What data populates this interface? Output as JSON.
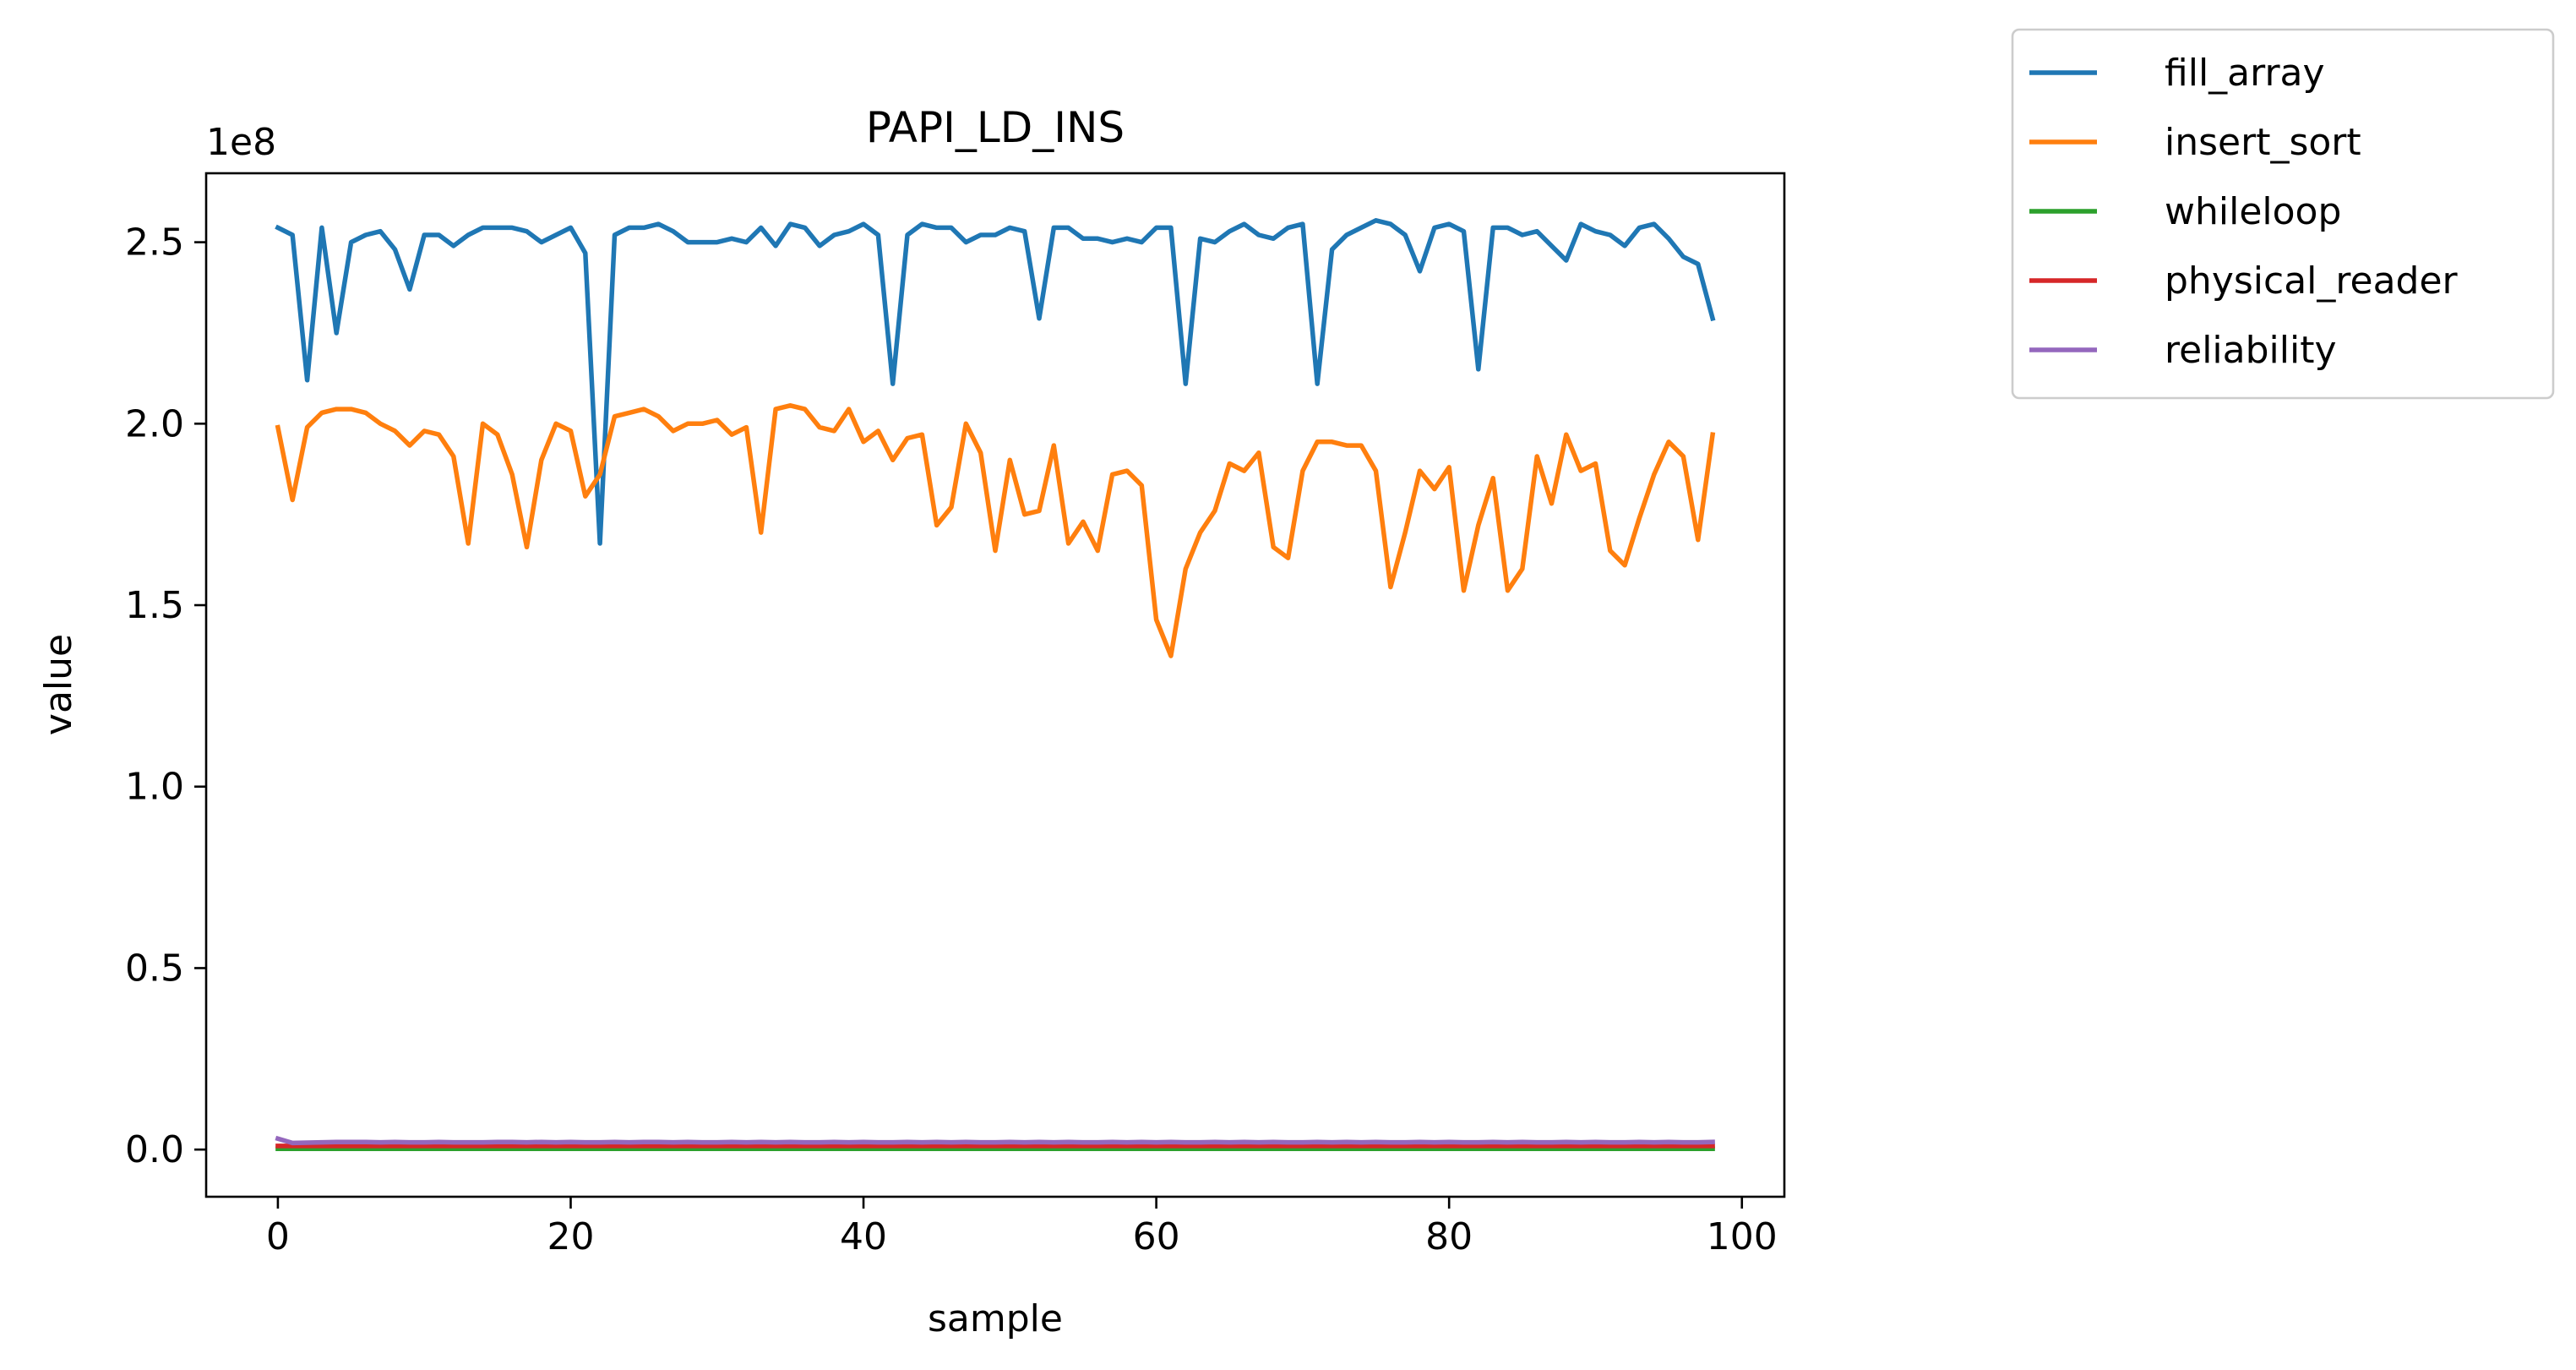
{
  "chart_data": {
    "type": "line",
    "title": "PAPI_LD_INS",
    "xlabel": "sample",
    "ylabel": "value",
    "y_multiplier_label": "1e8",
    "xlim": [
      -4.9,
      102.9
    ],
    "ylim": [
      -0.13,
      2.69
    ],
    "x_ticks": [
      0,
      20,
      40,
      60,
      80,
      100
    ],
    "x_tick_labels": [
      "0",
      "20",
      "40",
      "60",
      "80",
      "100"
    ],
    "y_ticks": [
      0.0,
      0.5,
      1.0,
      1.5,
      2.0,
      2.5
    ],
    "y_tick_labels": [
      "0.0",
      "0.5",
      "1.0",
      "1.5",
      "2.0",
      "2.5"
    ],
    "grid": false,
    "legend_position": "outside-top-right",
    "series": [
      {
        "name": "fill_array",
        "color": "#1f77b4",
        "values": [
          2.54,
          2.52,
          2.12,
          2.54,
          2.25,
          2.5,
          2.52,
          2.53,
          2.48,
          2.37,
          2.52,
          2.52,
          2.49,
          2.52,
          2.54,
          2.54,
          2.54,
          2.53,
          2.5,
          2.52,
          2.54,
          2.47,
          1.67,
          2.52,
          2.54,
          2.54,
          2.55,
          2.53,
          2.5,
          2.5,
          2.5,
          2.51,
          2.5,
          2.54,
          2.49,
          2.55,
          2.54,
          2.49,
          2.52,
          2.53,
          2.55,
          2.52,
          2.11,
          2.52,
          2.55,
          2.54,
          2.54,
          2.5,
          2.52,
          2.52,
          2.54,
          2.53,
          2.29,
          2.54,
          2.54,
          2.51,
          2.51,
          2.5,
          2.51,
          2.5,
          2.54,
          2.54,
          2.11,
          2.51,
          2.5,
          2.53,
          2.55,
          2.52,
          2.51,
          2.54,
          2.55,
          2.11,
          2.48,
          2.52,
          2.54,
          2.56,
          2.55,
          2.52,
          2.42,
          2.54,
          2.55,
          2.53,
          2.15,
          2.54,
          2.54,
          2.52,
          2.53,
          2.49,
          2.45,
          2.55,
          2.53,
          2.52,
          2.49,
          2.54,
          2.55,
          2.51,
          2.46,
          2.44,
          2.29
        ]
      },
      {
        "name": "insert_sort",
        "color": "#ff7f0e",
        "values": [
          1.99,
          1.79,
          1.99,
          2.03,
          2.04,
          2.04,
          2.03,
          2.0,
          1.98,
          1.94,
          1.98,
          1.97,
          1.91,
          1.67,
          2.0,
          1.97,
          1.86,
          1.66,
          1.9,
          2.0,
          1.98,
          1.8,
          1.86,
          2.02,
          2.03,
          2.04,
          2.02,
          1.98,
          2.0,
          2.0,
          2.01,
          1.97,
          1.99,
          1.7,
          2.04,
          2.05,
          2.04,
          1.99,
          1.98,
          2.04,
          1.95,
          1.98,
          1.9,
          1.96,
          1.97,
          1.72,
          1.77,
          2.0,
          1.92,
          1.65,
          1.9,
          1.75,
          1.76,
          1.94,
          1.67,
          1.73,
          1.65,
          1.86,
          1.87,
          1.83,
          1.46,
          1.36,
          1.6,
          1.7,
          1.76,
          1.89,
          1.87,
          1.92,
          1.66,
          1.63,
          1.87,
          1.95,
          1.95,
          1.94,
          1.94,
          1.87,
          1.55,
          1.7,
          1.87,
          1.82,
          1.88,
          1.54,
          1.72,
          1.85,
          1.54,
          1.6,
          1.91,
          1.78,
          1.97,
          1.87,
          1.89,
          1.65,
          1.61,
          1.74,
          1.86,
          1.95,
          1.91,
          1.68,
          1.97
        ]
      },
      {
        "name": "whileloop",
        "color": "#2ca02c",
        "values": [
          0.002,
          0.002,
          0.002,
          0.002,
          0.002,
          0.002,
          0.002,
          0.002,
          0.002,
          0.002,
          0.002,
          0.002,
          0.002,
          0.002,
          0.002,
          0.002,
          0.002,
          0.002,
          0.002,
          0.002,
          0.002,
          0.002,
          0.002,
          0.002,
          0.002,
          0.002,
          0.002,
          0.002,
          0.002,
          0.002,
          0.002,
          0.002,
          0.002,
          0.002,
          0.002,
          0.002,
          0.002,
          0.002,
          0.002,
          0.002,
          0.002,
          0.002,
          0.002,
          0.002,
          0.002,
          0.002,
          0.002,
          0.002,
          0.002,
          0.002,
          0.002,
          0.002,
          0.002,
          0.002,
          0.002,
          0.002,
          0.002,
          0.002,
          0.002,
          0.002,
          0.002,
          0.002,
          0.002,
          0.002,
          0.002,
          0.002,
          0.002,
          0.002,
          0.002,
          0.002,
          0.002,
          0.002,
          0.002,
          0.002,
          0.002,
          0.002,
          0.002,
          0.002,
          0.002,
          0.002,
          0.002,
          0.002,
          0.002,
          0.002,
          0.002,
          0.002,
          0.002,
          0.002,
          0.002,
          0.002,
          0.002,
          0.002,
          0.002,
          0.002,
          0.002,
          0.002,
          0.002,
          0.002,
          0.002
        ]
      },
      {
        "name": "physical_reader",
        "color": "#d62728",
        "values": [
          0.01,
          0.01,
          0.01,
          0.01,
          0.01,
          0.01,
          0.01,
          0.01,
          0.01,
          0.01,
          0.01,
          0.01,
          0.01,
          0.01,
          0.01,
          0.01,
          0.01,
          0.01,
          0.01,
          0.01,
          0.01,
          0.01,
          0.01,
          0.01,
          0.01,
          0.01,
          0.01,
          0.01,
          0.01,
          0.01,
          0.01,
          0.01,
          0.01,
          0.01,
          0.01,
          0.01,
          0.01,
          0.01,
          0.01,
          0.01,
          0.01,
          0.01,
          0.01,
          0.01,
          0.01,
          0.01,
          0.01,
          0.01,
          0.01,
          0.01,
          0.01,
          0.01,
          0.01,
          0.01,
          0.01,
          0.01,
          0.01,
          0.01,
          0.01,
          0.01,
          0.01,
          0.01,
          0.01,
          0.01,
          0.01,
          0.01,
          0.01,
          0.01,
          0.01,
          0.01,
          0.01,
          0.01,
          0.01,
          0.01,
          0.01,
          0.01,
          0.01,
          0.01,
          0.01,
          0.01,
          0.01,
          0.01,
          0.01,
          0.01,
          0.01,
          0.01,
          0.01,
          0.01,
          0.01,
          0.01,
          0.01,
          0.01,
          0.01,
          0.01,
          0.01,
          0.01,
          0.01,
          0.01,
          0.01
        ]
      },
      {
        "name": "reliability",
        "color": "#9467bd",
        "values": [
          0.03,
          0.018,
          0.019,
          0.02,
          0.021,
          0.021,
          0.021,
          0.02,
          0.021,
          0.02,
          0.02,
          0.021,
          0.02,
          0.02,
          0.02,
          0.021,
          0.021,
          0.02,
          0.021,
          0.02,
          0.021,
          0.02,
          0.02,
          0.021,
          0.02,
          0.021,
          0.021,
          0.02,
          0.021,
          0.02,
          0.02,
          0.021,
          0.02,
          0.021,
          0.02,
          0.021,
          0.02,
          0.02,
          0.021,
          0.02,
          0.021,
          0.02,
          0.02,
          0.021,
          0.02,
          0.021,
          0.02,
          0.021,
          0.02,
          0.02,
          0.021,
          0.02,
          0.021,
          0.02,
          0.021,
          0.02,
          0.02,
          0.021,
          0.02,
          0.021,
          0.02,
          0.021,
          0.02,
          0.02,
          0.021,
          0.02,
          0.021,
          0.02,
          0.021,
          0.02,
          0.02,
          0.021,
          0.02,
          0.021,
          0.02,
          0.021,
          0.02,
          0.02,
          0.021,
          0.02,
          0.021,
          0.02,
          0.02,
          0.021,
          0.02,
          0.021,
          0.02,
          0.02,
          0.021,
          0.02,
          0.021,
          0.02,
          0.02,
          0.021,
          0.02,
          0.021,
          0.02,
          0.02,
          0.021
        ]
      }
    ]
  }
}
